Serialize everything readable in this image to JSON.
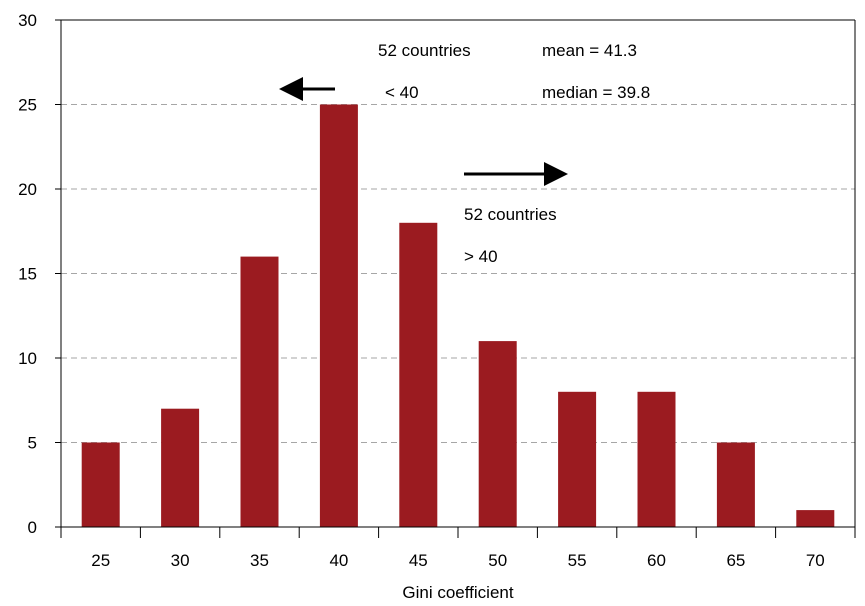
{
  "chart_data": {
    "type": "bar",
    "title": "",
    "xlabel": "Gini coefficient",
    "ylabel": "",
    "categories": [
      "25",
      "30",
      "35",
      "40",
      "45",
      "50",
      "55",
      "60",
      "65",
      "70"
    ],
    "values": [
      5,
      7,
      16,
      25,
      18,
      11,
      8,
      8,
      5,
      1
    ],
    "ylim": [
      0,
      30
    ],
    "yticks": [
      "0",
      "5",
      "10",
      "15",
      "20",
      "25",
      "30"
    ],
    "grid": "horizontal dashed",
    "bar_color": "#9b1b20",
    "annotations": {
      "left_count": "52 countries",
      "left_condition": "< 40",
      "mean": "mean = 41.3",
      "median": "median = 39.8",
      "right_count": "52 countries",
      "right_condition": "> 40"
    }
  },
  "colors": {
    "bar": "#9b1b20",
    "grid": "#a6a6a6",
    "axis": "#000000"
  }
}
